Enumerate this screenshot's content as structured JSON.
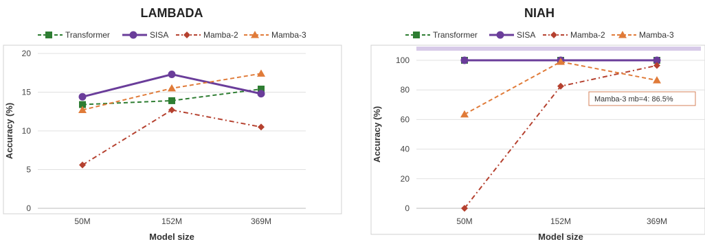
{
  "chart_data": [
    {
      "type": "line",
      "title": "LAMBADA",
      "xlabel": "Model size",
      "ylabel": "Accuracy (%)",
      "categories": [
        "50M",
        "152M",
        "369M"
      ],
      "ylim": [
        0,
        20
      ],
      "yticks": [
        0,
        5,
        10,
        15,
        20
      ],
      "legend_position": "top",
      "series": [
        {
          "name": "Transformer",
          "values": [
            13.4,
            13.9,
            15.4
          ],
          "color": "#2e7d32",
          "marker": "square",
          "dash": "dash"
        },
        {
          "name": "SISA",
          "values": [
            14.4,
            17.3,
            14.8
          ],
          "color": "#6a3d9a",
          "marker": "circle",
          "dash": "solid"
        },
        {
          "name": "Mamba-2",
          "values": [
            5.6,
            12.7,
            10.5
          ],
          "color": "#b5412f",
          "marker": "diamond",
          "dash": "dashdot"
        },
        {
          "name": "Mamba-3",
          "values": [
            12.7,
            15.5,
            17.4
          ],
          "color": "#e07b39",
          "marker": "triangle",
          "dash": "dash"
        }
      ]
    },
    {
      "type": "line",
      "title": "NIAH",
      "xlabel": "Model size",
      "ylabel": "Accuracy (%)",
      "categories": [
        "50M",
        "152M",
        "369M"
      ],
      "ylim": [
        0,
        100
      ],
      "yticks": [
        0,
        20,
        40,
        60,
        80,
        100
      ],
      "legend_position": "top",
      "annotation": "Mamba-3 mb=4: 86.5%",
      "series": [
        {
          "name": "Transformer",
          "values": [
            100,
            100,
            100
          ],
          "color": "#2e7d32",
          "marker": "square",
          "dash": "dash"
        },
        {
          "name": "SISA",
          "values": [
            100,
            100,
            100
          ],
          "color": "#6a3d9a",
          "marker": "circle",
          "dash": "solid"
        },
        {
          "name": "Mamba-2",
          "values": [
            0,
            82.5,
            96.5
          ],
          "color": "#b5412f",
          "marker": "diamond",
          "dash": "dashdot"
        },
        {
          "name": "Mamba-3",
          "values": [
            63.5,
            99,
            86.5
          ],
          "color": "#e07b39",
          "marker": "triangle",
          "dash": "dash"
        }
      ]
    }
  ]
}
